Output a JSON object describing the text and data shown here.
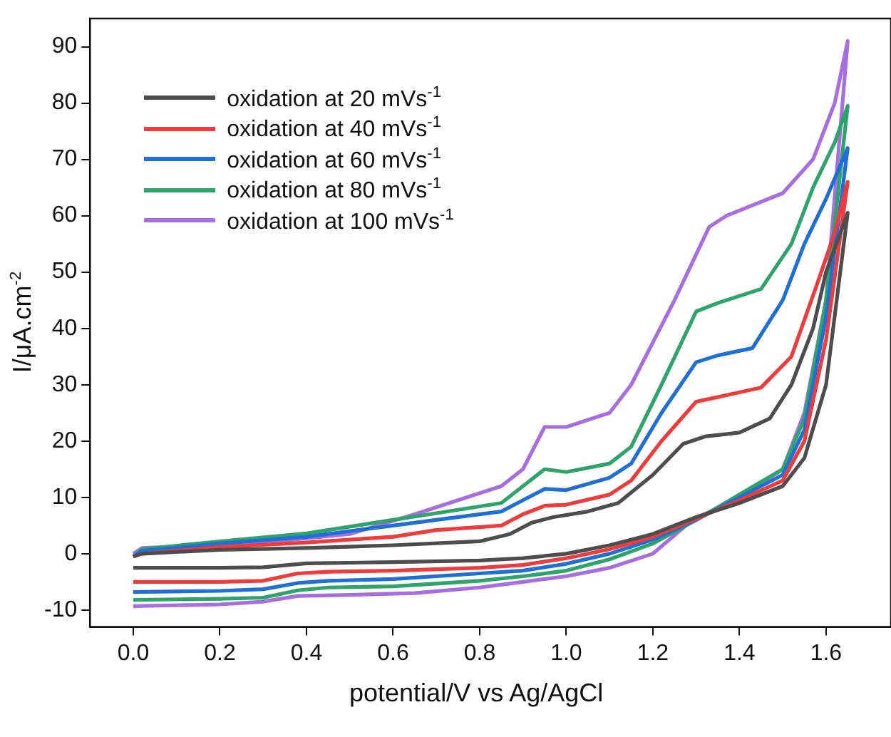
{
  "chart_data": {
    "type": "line",
    "xlabel": "potential/V vs Ag/AgCl",
    "ylabel": "I/μA.cm$^{-2}$",
    "xlim": [
      -0.1,
      1.75
    ],
    "ylim": [
      -13,
      95
    ],
    "xticks": [
      {
        "value": 0,
        "label": "0.0"
      },
      {
        "value": 0.2,
        "label": "0.2"
      },
      {
        "value": 0.4,
        "label": "0.4"
      },
      {
        "value": 0.6,
        "label": "0.6"
      },
      {
        "value": 0.8,
        "label": "0.8"
      },
      {
        "value": 1,
        "label": "1.0"
      },
      {
        "value": 1.2,
        "label": "1.2"
      },
      {
        "value": 1.4,
        "label": "1.4"
      },
      {
        "value": 1.6,
        "label": "1.6"
      }
    ],
    "yticks": [
      -10,
      0,
      10,
      20,
      30,
      40,
      50,
      60,
      70,
      80,
      90
    ],
    "grid": false,
    "legend": "top left",
    "marker": "none",
    "line_style": "solid",
    "series": [
      {
        "name": "oxidation at 20 mVs$^{-1}$",
        "color": "#4d4d4d",
        "x": [
          0,
          0.02,
          0.2,
          0.4,
          0.6,
          0.8,
          0.87,
          0.92,
          0.97,
          1.05,
          1.12,
          1.2,
          1.27,
          1.32,
          1.4,
          1.47,
          1.52,
          1.57,
          1.6,
          1.65,
          1.6,
          1.55,
          1.5,
          1.4,
          1.3,
          1.2,
          1.1,
          1.0,
          0.9,
          0.8,
          0.6,
          0.4,
          0.3,
          0.2,
          0
        ],
        "values": [
          -0.5,
          0,
          0.7,
          1,
          1.5,
          2.2,
          3.5,
          5.5,
          6.5,
          7.5,
          9,
          14,
          19.5,
          20.8,
          21.5,
          24,
          30,
          40,
          50,
          60.5,
          30,
          17,
          12,
          9,
          6.5,
          3.5,
          1.5,
          0,
          -0.8,
          -1.2,
          -1.5,
          -1.7,
          -2.4,
          -2.5,
          -2.5
        ]
      },
      {
        "name": "oxidation at 40 mVs$^{-1}$",
        "color": "#ef3b3b",
        "x": [
          0,
          0.02,
          0.2,
          0.4,
          0.6,
          0.7,
          0.85,
          0.9,
          0.95,
          1.0,
          1.1,
          1.15,
          1.22,
          1.3,
          1.35,
          1.45,
          1.52,
          1.58,
          1.62,
          1.65,
          1.6,
          1.55,
          1.5,
          1.4,
          1.3,
          1.2,
          1.1,
          1.0,
          0.9,
          0.8,
          0.6,
          0.45,
          0.38,
          0.3,
          0.2,
          0
        ],
        "values": [
          -0.5,
          0,
          1.2,
          2,
          3,
          4.2,
          5,
          7,
          8.5,
          8.7,
          10.5,
          13,
          20,
          27,
          27.8,
          29.5,
          35,
          48,
          57,
          66,
          38,
          20,
          13,
          9.5,
          6.2,
          3,
          0.8,
          -0.8,
          -2,
          -2.5,
          -3,
          -3.2,
          -3.5,
          -4.8,
          -5,
          -5
        ]
      },
      {
        "name": "oxidation at 60 mVs$^{-1}$",
        "color": "#1f6fd6",
        "x": [
          0,
          0.02,
          0.2,
          0.4,
          0.6,
          0.7,
          0.85,
          0.9,
          0.95,
          1.0,
          1.1,
          1.15,
          1.22,
          1.3,
          1.35,
          1.43,
          1.5,
          1.55,
          1.6,
          1.65,
          1.6,
          1.55,
          1.5,
          1.4,
          1.3,
          1.2,
          1.1,
          1.0,
          0.9,
          0.8,
          0.6,
          0.45,
          0.38,
          0.3,
          0.2,
          0
        ],
        "values": [
          -0.5,
          0.5,
          1.8,
          3,
          5,
          6,
          7.5,
          9.5,
          11.5,
          11.3,
          13.5,
          16,
          25,
          34,
          35.2,
          36.5,
          45,
          55,
          63,
          72,
          42,
          22,
          14,
          10,
          6,
          2.5,
          0,
          -1.8,
          -3,
          -3.5,
          -4.5,
          -4.8,
          -5.2,
          -6.3,
          -6.6,
          -6.8
        ]
      },
      {
        "name": "oxidation at 80 mVs$^{-1}$",
        "color": "#2ea36a",
        "x": [
          0,
          0.02,
          0.2,
          0.4,
          0.6,
          0.7,
          0.85,
          0.9,
          0.95,
          1.0,
          1.1,
          1.15,
          1.22,
          1.3,
          1.35,
          1.45,
          1.52,
          1.57,
          1.62,
          1.65,
          1.6,
          1.55,
          1.5,
          1.4,
          1.3,
          1.2,
          1.1,
          1.0,
          0.9,
          0.8,
          0.6,
          0.45,
          0.38,
          0.3,
          0.2,
          0
        ],
        "values": [
          -0.5,
          0.8,
          2.2,
          3.6,
          6,
          7.2,
          9,
          12,
          15,
          14.5,
          16,
          19,
          30,
          43,
          44.5,
          47,
          55,
          65,
          73,
          79.5,
          45,
          24,
          15,
          10.5,
          6,
          1.8,
          -1,
          -3,
          -4,
          -4.8,
          -5.8,
          -6,
          -6.5,
          -7.8,
          -8,
          -8.2
        ]
      },
      {
        "name": "oxidation at 100 mVs$^{-1}$",
        "color": "#a66ee0",
        "x": [
          0,
          0.02,
          0.3,
          0.5,
          0.65,
          0.85,
          0.9,
          0.95,
          1.0,
          1.1,
          1.15,
          1.25,
          1.33,
          1.37,
          1.5,
          1.57,
          1.62,
          1.65,
          1.6,
          1.55,
          1.5,
          1.4,
          1.29,
          1.2,
          1.1,
          1.0,
          0.9,
          0.8,
          0.65,
          0.5,
          0.38,
          0.3,
          0.2,
          0
        ],
        "values": [
          0,
          1,
          2,
          3.5,
          7,
          12,
          15,
          22.5,
          22.5,
          25,
          30,
          45,
          58,
          60,
          64,
          70,
          80,
          91,
          45,
          25,
          15,
          10,
          5.9,
          0,
          -2.5,
          -4,
          -5,
          -6,
          -7,
          -7.3,
          -7.5,
          -8.5,
          -9,
          -9.3
        ]
      }
    ]
  }
}
